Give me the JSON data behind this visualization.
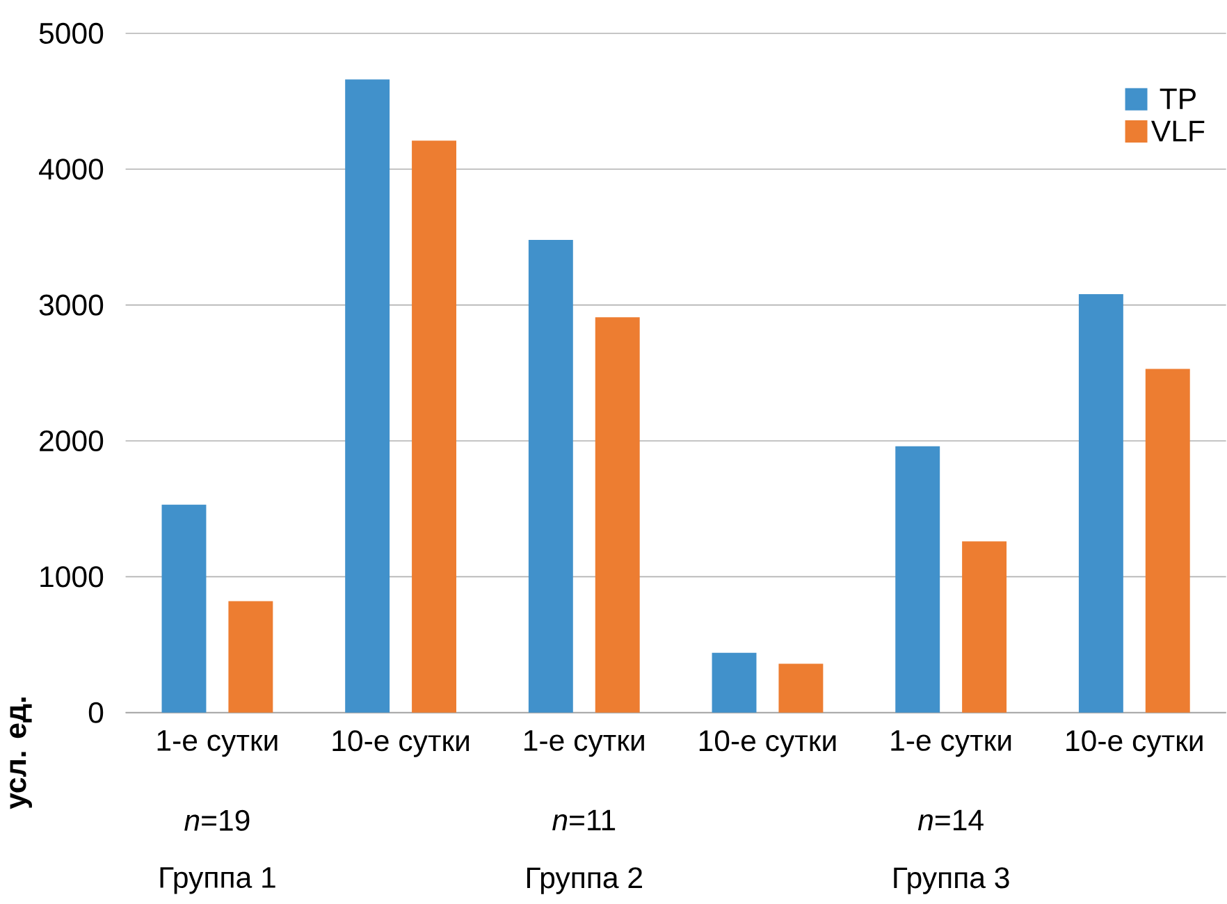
{
  "chart_data": {
    "type": "bar",
    "ylabel": "усл. ед.",
    "categories": [
      "1-е сутки",
      "10-е сутки",
      "1-е сутки",
      "10-е сутки",
      "1-е сутки",
      "10-е сутки"
    ],
    "series": [
      {
        "name": "TP",
        "color": "#4191cb",
        "values": [
          1530,
          4660,
          3480,
          440,
          1960,
          3080
        ]
      },
      {
        "name": "VLF",
        "color": "#ed7d31",
        "values": [
          820,
          4210,
          2910,
          360,
          1260,
          2530
        ]
      }
    ],
    "annotations": [
      "*n*=19",
      "*n*=11",
      "*n*=14",
      "Группа 1",
      "Группа 2",
      "Группа 3"
    ],
    "ylim": [
      0,
      5000
    ],
    "yticks": [
      0,
      1000,
      2000,
      3000,
      4000,
      5000
    ],
    "grid": "y",
    "legend": "top right"
  }
}
